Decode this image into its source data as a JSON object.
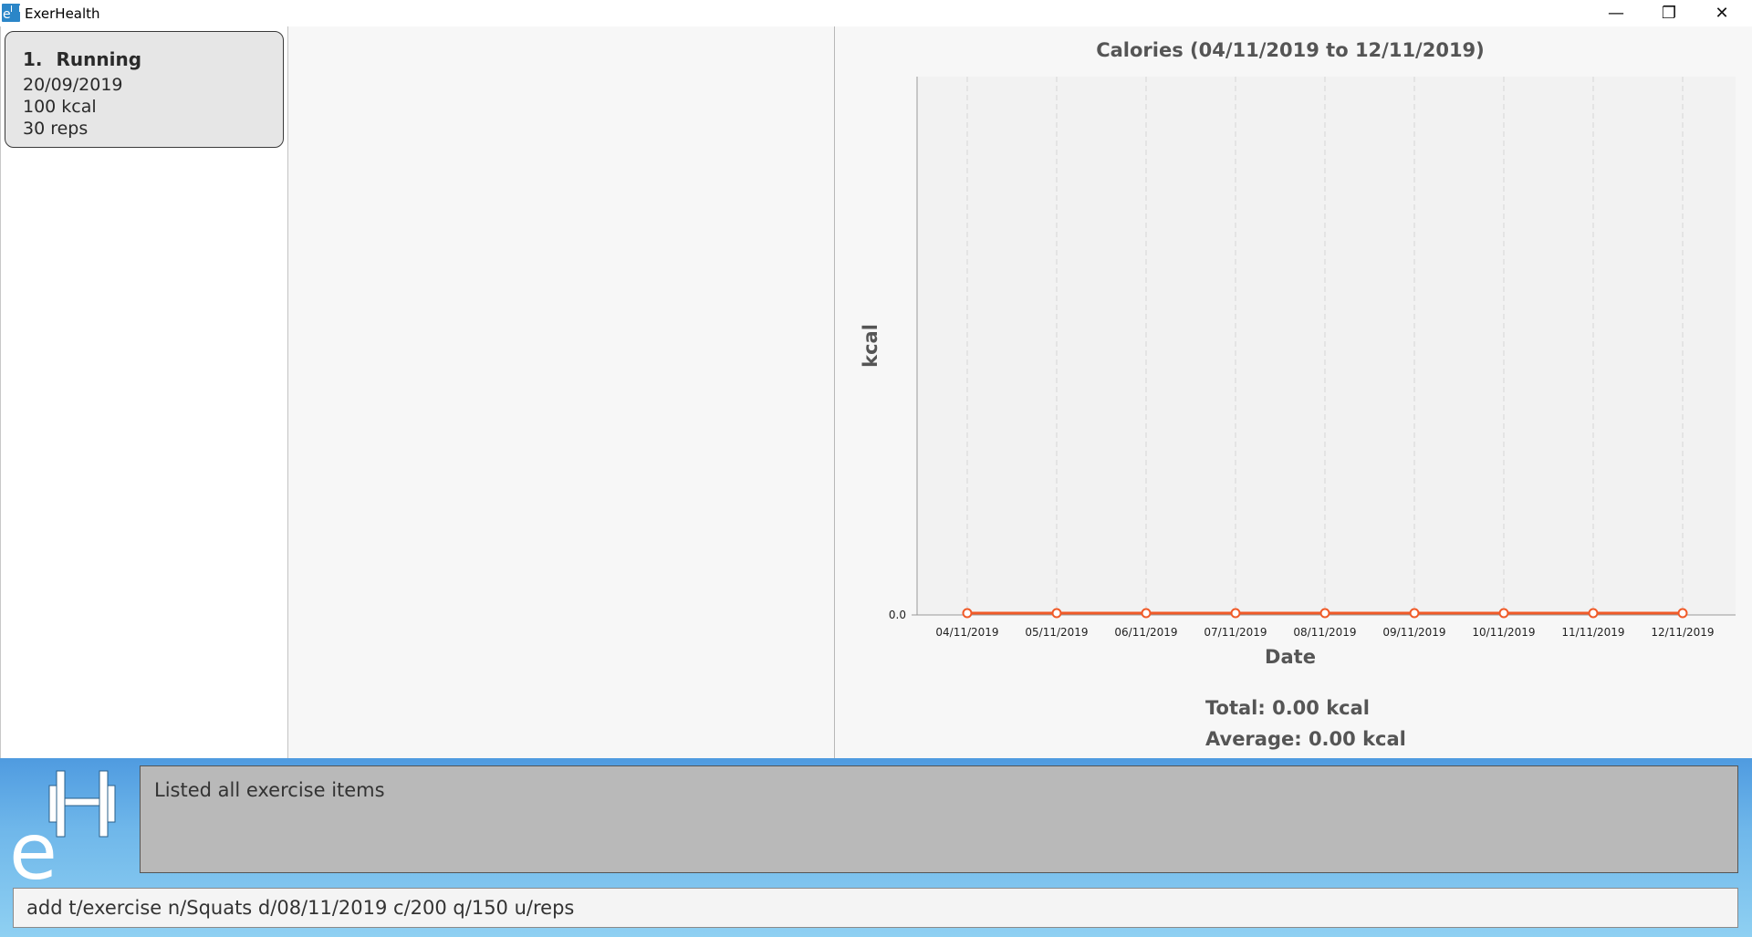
{
  "window": {
    "title": "ExerHealth",
    "controls": {
      "minimize": "—",
      "maximize": "❐",
      "close": "✕"
    }
  },
  "exercise_list": [
    {
      "index": "1.",
      "name": "Running",
      "date": "20/09/2019",
      "calories": "100 kcal",
      "quantity": "30 reps"
    }
  ],
  "chart_data": {
    "type": "line",
    "title": "Calories (04/11/2019 to 12/11/2019)",
    "xlabel": "Date",
    "ylabel": "kcal",
    "x": [
      "04/11/2019",
      "05/11/2019",
      "06/11/2019",
      "07/11/2019",
      "08/11/2019",
      "09/11/2019",
      "10/11/2019",
      "11/11/2019",
      "12/11/2019"
    ],
    "series": [
      {
        "values": [
          0,
          0,
          0,
          0,
          0,
          0,
          0,
          0,
          0
        ],
        "color": "#f05a28"
      }
    ],
    "y_ticks": [
      "0.0"
    ],
    "grid": "vertical dashed",
    "plot_background": "#f2f2f2"
  },
  "summary": {
    "total": "Total: 0.00 kcal",
    "average": "Average: 0.00 kcal"
  },
  "result_display": "Listed all exercise items",
  "command_box": {
    "value": "add t/exercise n/Squats d/08/11/2019 c/200 q/150 u/reps"
  },
  "logo": {
    "icon": "exerhealth-logo-icon",
    "letter": "e"
  }
}
